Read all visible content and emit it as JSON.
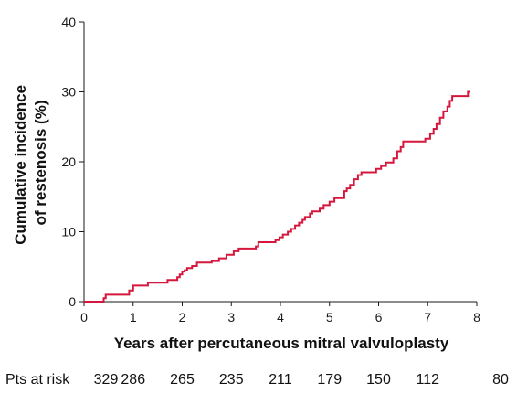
{
  "chart_data": {
    "type": "line",
    "title": "",
    "xlabel": "Years after percutaneous mitral valvuloplasty",
    "ylabel_lines": [
      "Cumulative incidence",
      "of restenosis (%)"
    ],
    "xlim": [
      0,
      8
    ],
    "ylim": [
      0,
      40
    ],
    "x_ticks": [
      0,
      1,
      2,
      3,
      4,
      5,
      6,
      7,
      8
    ],
    "y_ticks": [
      0,
      10,
      20,
      30,
      40
    ],
    "grid": false,
    "series": [
      {
        "color": "#d6173d",
        "step": true,
        "points": [
          [
            0,
            0
          ],
          [
            0.38,
            0
          ],
          [
            0.4,
            0.5
          ],
          [
            0.44,
            1.0
          ],
          [
            0.85,
            1.0
          ],
          [
            0.92,
            1.6
          ],
          [
            1.0,
            2.3
          ],
          [
            1.25,
            2.3
          ],
          [
            1.3,
            2.7
          ],
          [
            1.65,
            2.7
          ],
          [
            1.7,
            3.1
          ],
          [
            1.85,
            3.1
          ],
          [
            1.9,
            3.5
          ],
          [
            1.95,
            3.9
          ],
          [
            2.0,
            4.3
          ],
          [
            2.05,
            4.5
          ],
          [
            2.1,
            4.8
          ],
          [
            2.2,
            5.1
          ],
          [
            2.3,
            5.6
          ],
          [
            2.55,
            5.6
          ],
          [
            2.6,
            5.8
          ],
          [
            2.75,
            6.2
          ],
          [
            2.9,
            6.7
          ],
          [
            3.05,
            7.2
          ],
          [
            3.15,
            7.6
          ],
          [
            3.45,
            7.6
          ],
          [
            3.5,
            7.9
          ],
          [
            3.55,
            8.5
          ],
          [
            3.85,
            8.5
          ],
          [
            3.9,
            8.8
          ],
          [
            3.98,
            9.2
          ],
          [
            4.05,
            9.6
          ],
          [
            4.15,
            10.0
          ],
          [
            4.22,
            10.4
          ],
          [
            4.3,
            10.9
          ],
          [
            4.38,
            11.3
          ],
          [
            4.45,
            11.7
          ],
          [
            4.5,
            12.1
          ],
          [
            4.6,
            12.6
          ],
          [
            4.65,
            12.9
          ],
          [
            4.8,
            13.3
          ],
          [
            4.88,
            13.8
          ],
          [
            5.0,
            14.3
          ],
          [
            5.1,
            14.8
          ],
          [
            5.25,
            14.8
          ],
          [
            5.3,
            15.8
          ],
          [
            5.35,
            16.2
          ],
          [
            5.42,
            16.7
          ],
          [
            5.5,
            17.5
          ],
          [
            5.58,
            18.1
          ],
          [
            5.65,
            18.5
          ],
          [
            5.9,
            18.5
          ],
          [
            5.95,
            19.0
          ],
          [
            6.05,
            19.4
          ],
          [
            6.15,
            19.9
          ],
          [
            6.3,
            20.5
          ],
          [
            6.38,
            21.5
          ],
          [
            6.45,
            22.1
          ],
          [
            6.5,
            22.9
          ],
          [
            6.9,
            22.9
          ],
          [
            6.95,
            23.3
          ],
          [
            7.05,
            24.0
          ],
          [
            7.12,
            24.7
          ],
          [
            7.18,
            25.4
          ],
          [
            7.25,
            26.3
          ],
          [
            7.32,
            27.2
          ],
          [
            7.4,
            27.9
          ],
          [
            7.45,
            28.7
          ],
          [
            7.5,
            29.4
          ],
          [
            7.78,
            29.4
          ],
          [
            7.82,
            30.0
          ],
          [
            7.86,
            30.0
          ]
        ]
      }
    ],
    "risk_table": {
      "label": "Pts at risk",
      "years": [
        0,
        1,
        2,
        3,
        4,
        5,
        6,
        7,
        8
      ],
      "values": [
        "329",
        "286",
        "265",
        "235",
        "211",
        "179",
        "150",
        "112",
        "80"
      ]
    }
  }
}
